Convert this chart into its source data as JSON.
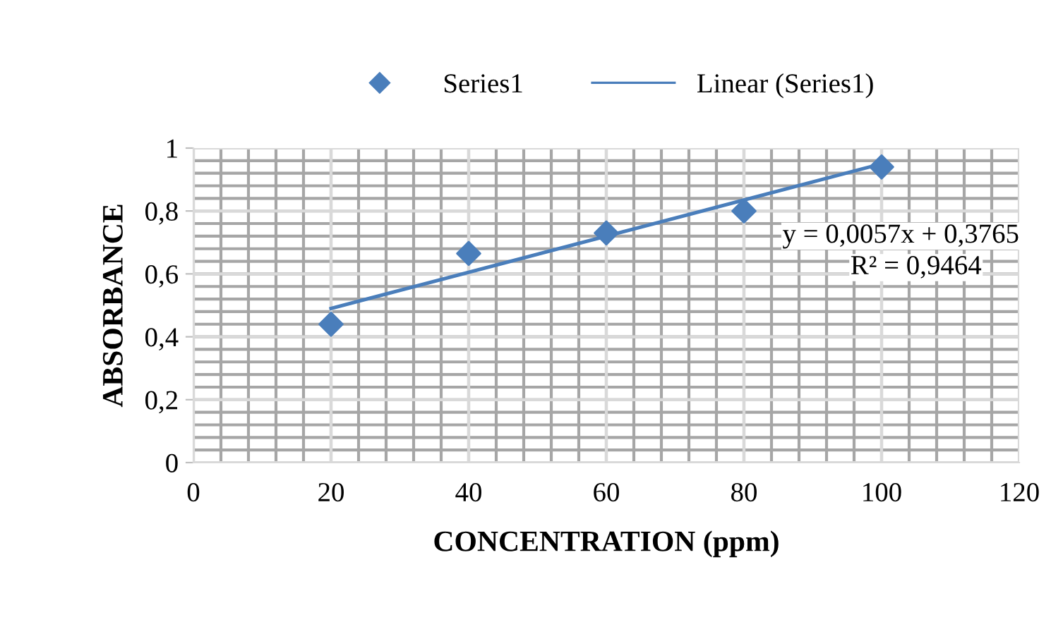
{
  "chart_data": {
    "type": "scatter",
    "xlabel": "CONCENTRATION (ppm)",
    "ylabel": "ABSORBANCE",
    "series": [
      {
        "name": "Series1",
        "color": "#4a7ebb",
        "marker": "diamond",
        "x": [
          20,
          40,
          60,
          80,
          100
        ],
        "values": [
          0.44,
          0.665,
          0.73,
          0.8,
          0.94
        ]
      },
      {
        "name": "Linear (Series1)",
        "type": "line",
        "color": "#4a7ebb",
        "marker": "none",
        "line_style": "solid",
        "x": [
          20,
          100
        ],
        "values": [
          0.49,
          0.95
        ]
      }
    ],
    "xlim": [
      0,
      120
    ],
    "xticks": [
      0,
      20,
      40,
      60,
      80,
      100,
      120
    ],
    "ylim": [
      0,
      1
    ],
    "yticks": [
      0,
      {
        "value": 0.2,
        "label": "0,2"
      },
      {
        "value": 0.4,
        "label": "0,4"
      },
      {
        "value": 0.6,
        "label": "0,6"
      },
      {
        "value": 0.8,
        "label": "0,8"
      },
      1
    ],
    "grid": true,
    "legend": "top",
    "annotations": [
      "y = 0,0057x + 0,3765",
      "R² = 0,9464"
    ]
  }
}
